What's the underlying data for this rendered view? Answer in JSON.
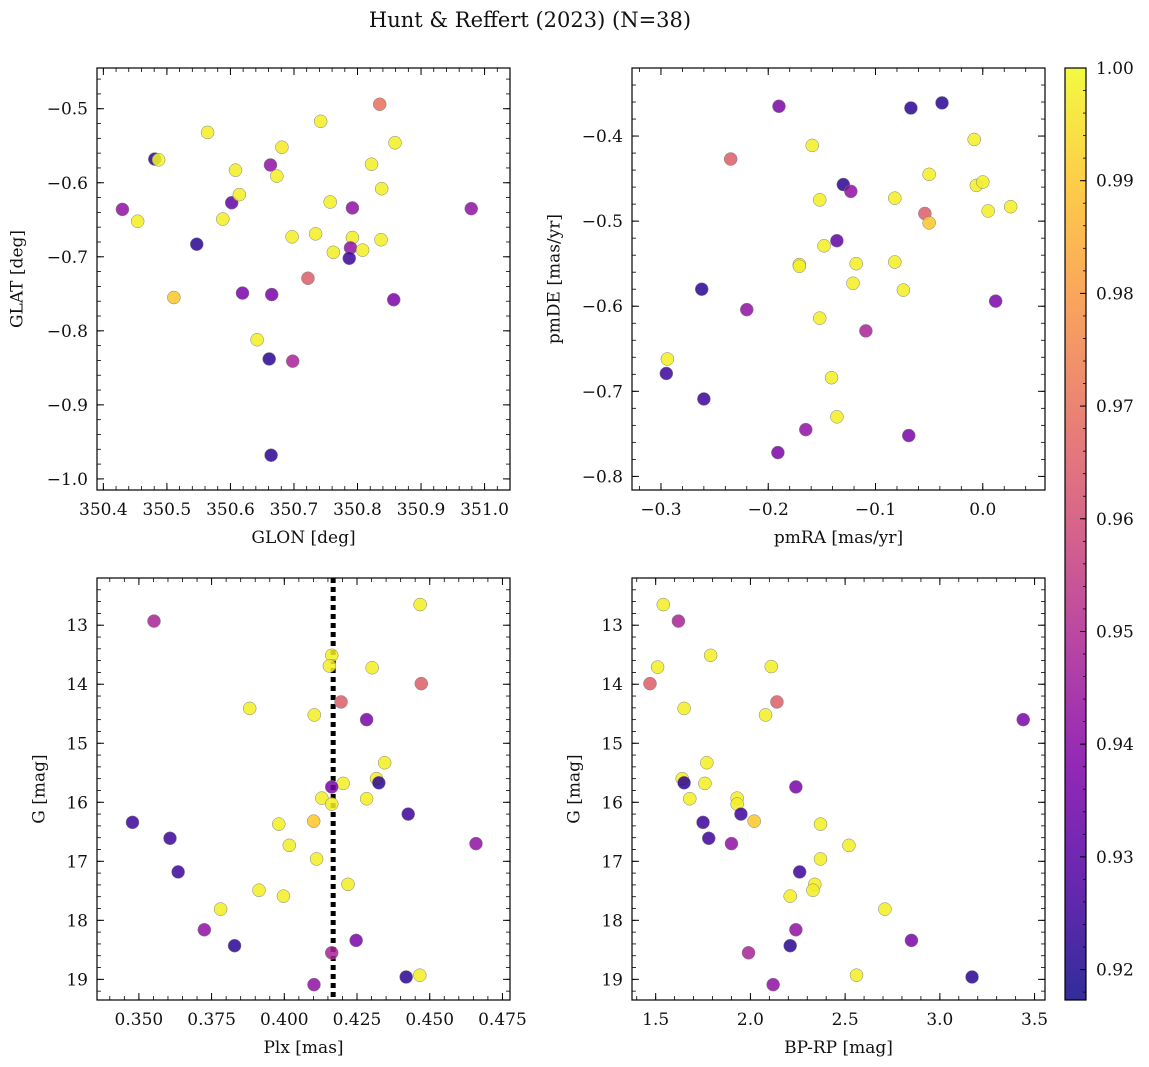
{
  "suptitle": "Hunt & Reffert (2023) (N=38)",
  "colorbar": {
    "colormap": "plasma",
    "range": [
      0.9173,
      1.0
    ],
    "ticks": [
      "0.92",
      "0.93",
      "0.94",
      "0.95",
      "0.96",
      "0.97",
      "0.98",
      "0.99",
      "1.00"
    ]
  },
  "marker": {
    "edge_color": "#808080",
    "alpha": 0.85
  },
  "chart_data": [
    {
      "id": "glon_glat",
      "type": "scatter",
      "xlabel": "GLON [deg]",
      "ylabel": "GLAT [deg]",
      "xlim": [
        350.39,
        351.04
      ],
      "ylim": [
        -1.015,
        -0.445
      ],
      "y_inverted": false,
      "xticks": [
        "350.4",
        "350.5",
        "350.6",
        "350.7",
        "350.8",
        "350.9",
        "351.0"
      ],
      "yticks": [
        "−0.5",
        "−0.6",
        "−0.7",
        "−0.8",
        "−0.9",
        "−1.0"
      ],
      "points": [
        [
          350.481,
          -0.568,
          0.922
        ],
        [
          350.487,
          -0.569,
          1.0
        ],
        [
          350.564,
          -0.532,
          0.998
        ],
        [
          350.742,
          -0.517,
          0.998
        ],
        [
          350.835,
          -0.494,
          0.97
        ],
        [
          350.681,
          -0.552,
          0.997
        ],
        [
          350.859,
          -0.546,
          0.998
        ],
        [
          350.608,
          -0.583,
          0.998
        ],
        [
          350.663,
          -0.576,
          0.942
        ],
        [
          350.673,
          -0.591,
          0.998
        ],
        [
          350.822,
          -0.575,
          0.998
        ],
        [
          350.43,
          -0.636,
          0.942
        ],
        [
          350.454,
          -0.652,
          0.998
        ],
        [
          350.602,
          -0.627,
          0.932
        ],
        [
          350.614,
          -0.616,
          0.998
        ],
        [
          350.588,
          -0.649,
          0.998
        ],
        [
          350.757,
          -0.626,
          0.998
        ],
        [
          350.792,
          -0.634,
          0.942
        ],
        [
          350.838,
          -0.608,
          0.998
        ],
        [
          350.979,
          -0.635,
          0.942
        ],
        [
          350.547,
          -0.683,
          0.922
        ],
        [
          350.697,
          -0.673,
          0.998
        ],
        [
          350.734,
          -0.669,
          0.998
        ],
        [
          350.792,
          -0.674,
          0.998
        ],
        [
          350.789,
          -0.688,
          0.942
        ],
        [
          350.837,
          -0.677,
          0.998
        ],
        [
          350.808,
          -0.691,
          0.998
        ],
        [
          350.762,
          -0.694,
          0.998
        ],
        [
          350.787,
          -0.702,
          0.925
        ],
        [
          350.511,
          -0.755,
          0.99
        ],
        [
          350.619,
          -0.749,
          0.937
        ],
        [
          350.665,
          -0.751,
          0.937
        ],
        [
          350.722,
          -0.729,
          0.965
        ],
        [
          350.857,
          -0.758,
          0.937
        ],
        [
          350.642,
          -0.812,
          0.998
        ],
        [
          350.661,
          -0.838,
          0.922
        ],
        [
          350.698,
          -0.841,
          0.948
        ],
        [
          350.664,
          -0.968,
          0.922
        ]
      ]
    },
    {
      "id": "pmra_pmde",
      "type": "scatter",
      "xlabel": "pmRA [mas/yr]",
      "ylabel": "pmDE [mas/yr]",
      "xlim": [
        -0.327,
        0.058
      ],
      "ylim": [
        -0.816,
        -0.32
      ],
      "y_inverted": false,
      "xticks": [
        "−0.3",
        "−0.2",
        "−0.1",
        "0.0"
      ],
      "yticks": [
        "−0.4",
        "−0.5",
        "−0.6",
        "−0.7",
        "−0.8"
      ],
      "points": [
        [
          -0.19,
          -0.365,
          0.937
        ],
        [
          -0.067,
          -0.367,
          0.922
        ],
        [
          -0.038,
          -0.361,
          0.922
        ],
        [
          -0.159,
          -0.411,
          0.998
        ],
        [
          -0.008,
          -0.404,
          0.998
        ],
        [
          -0.235,
          -0.427,
          0.965
        ],
        [
          -0.05,
          -0.445,
          0.998
        ],
        [
          -0.006,
          -0.458,
          0.998
        ],
        [
          0.0,
          -0.454,
          0.998
        ],
        [
          -0.13,
          -0.457,
          0.922
        ],
        [
          -0.123,
          -0.465,
          0.942
        ],
        [
          -0.152,
          -0.475,
          0.998
        ],
        [
          -0.082,
          -0.473,
          0.998
        ],
        [
          0.026,
          -0.483,
          0.998
        ],
        [
          0.005,
          -0.488,
          0.998
        ],
        [
          -0.054,
          -0.491,
          0.965
        ],
        [
          -0.05,
          -0.502,
          0.99
        ],
        [
          -0.136,
          -0.523,
          0.932
        ],
        [
          -0.148,
          -0.529,
          0.998
        ],
        [
          -0.171,
          -0.551,
          0.998
        ],
        [
          -0.171,
          -0.553,
          0.998
        ],
        [
          -0.118,
          -0.55,
          0.998
        ],
        [
          -0.082,
          -0.548,
          0.998
        ],
        [
          -0.121,
          -0.573,
          0.998
        ],
        [
          -0.262,
          -0.58,
          0.922
        ],
        [
          -0.074,
          -0.581,
          0.998
        ],
        [
          0.012,
          -0.594,
          0.937
        ],
        [
          -0.22,
          -0.604,
          0.942
        ],
        [
          -0.152,
          -0.614,
          0.998
        ],
        [
          -0.109,
          -0.629,
          0.948
        ],
        [
          -0.294,
          -0.662,
          0.998
        ],
        [
          -0.295,
          -0.679,
          0.925
        ],
        [
          -0.141,
          -0.684,
          0.998
        ],
        [
          -0.26,
          -0.709,
          0.925
        ],
        [
          -0.136,
          -0.73,
          0.998
        ],
        [
          -0.165,
          -0.745,
          0.942
        ],
        [
          -0.069,
          -0.752,
          0.937
        ],
        [
          -0.191,
          -0.772,
          0.937
        ]
      ]
    },
    {
      "id": "plx_g",
      "type": "scatter",
      "xlabel": "Plx [mas]",
      "ylabel": "G [mag]",
      "xlim": [
        0.3356,
        0.4776
      ],
      "ylim": [
        12.2,
        19.35
      ],
      "y_inverted": true,
      "xticks": [
        "0.350",
        "0.375",
        "0.400",
        "0.425",
        "0.450",
        "0.475"
      ],
      "yticks": [
        "13",
        "14",
        "15",
        "16",
        "17",
        "18",
        "19"
      ],
      "vline": {
        "x": 0.4168,
        "style": "dotted",
        "color": "#000000"
      },
      "points": [
        [
          0.4467,
          12.65,
          0.998
        ],
        [
          0.3552,
          12.93,
          0.948
        ],
        [
          0.4163,
          13.51,
          0.998
        ],
        [
          0.4155,
          13.69,
          0.998
        ],
        [
          0.4302,
          13.72,
          0.998
        ],
        [
          0.4471,
          13.99,
          0.965
        ],
        [
          0.4195,
          14.3,
          0.965
        ],
        [
          0.3881,
          14.41,
          0.998
        ],
        [
          0.4103,
          14.52,
          0.998
        ],
        [
          0.4283,
          14.6,
          0.937
        ],
        [
          0.4345,
          15.33,
          0.998
        ],
        [
          0.4317,
          15.6,
          0.998
        ],
        [
          0.4325,
          15.67,
          0.922
        ],
        [
          0.4202,
          15.68,
          0.998
        ],
        [
          0.4163,
          15.74,
          0.937
        ],
        [
          0.4129,
          15.93,
          0.998
        ],
        [
          0.4283,
          15.94,
          0.998
        ],
        [
          0.4163,
          16.03,
          0.998
        ],
        [
          0.4426,
          16.2,
          0.925
        ],
        [
          0.4101,
          16.32,
          0.99
        ],
        [
          0.3478,
          16.34,
          0.925
        ],
        [
          0.3981,
          16.37,
          0.998
        ],
        [
          0.3607,
          16.61,
          0.925
        ],
        [
          0.4659,
          16.7,
          0.942
        ],
        [
          0.4017,
          16.73,
          0.998
        ],
        [
          0.4111,
          16.96,
          0.998
        ],
        [
          0.3635,
          17.18,
          0.925
        ],
        [
          0.4219,
          17.39,
          0.998
        ],
        [
          0.3913,
          17.49,
          0.998
        ],
        [
          0.3997,
          17.59,
          0.998
        ],
        [
          0.3781,
          17.81,
          0.998
        ],
        [
          0.3725,
          18.16,
          0.942
        ],
        [
          0.4247,
          18.34,
          0.937
        ],
        [
          0.3829,
          18.43,
          0.922
        ],
        [
          0.4163,
          18.55,
          0.948
        ],
        [
          0.4466,
          18.93,
          0.998
        ],
        [
          0.4419,
          18.96,
          0.922
        ],
        [
          0.4102,
          19.09,
          0.942
        ]
      ]
    },
    {
      "id": "bprp_g",
      "type": "scatter",
      "xlabel": "BP-RP [mag]",
      "ylabel": "G [mag]",
      "xlim": [
        1.375,
        3.555
      ],
      "ylim": [
        12.2,
        19.35
      ],
      "y_inverted": true,
      "xticks": [
        "1.5",
        "2.0",
        "2.5",
        "3.0",
        "3.5"
      ],
      "yticks": [
        "13",
        "14",
        "15",
        "16",
        "17",
        "18",
        "19"
      ],
      "points": [
        [
          1.54,
          12.65,
          0.998
        ],
        [
          1.62,
          12.93,
          0.948
        ],
        [
          1.79,
          13.51,
          0.998
        ],
        [
          1.51,
          13.71,
          0.998
        ],
        [
          2.11,
          13.7,
          0.998
        ],
        [
          1.47,
          13.99,
          0.965
        ],
        [
          2.14,
          14.3,
          0.965
        ],
        [
          1.65,
          14.41,
          0.998
        ],
        [
          2.08,
          14.52,
          0.998
        ],
        [
          3.44,
          14.6,
          0.937
        ],
        [
          1.77,
          15.33,
          0.998
        ],
        [
          1.64,
          15.6,
          0.998
        ],
        [
          1.65,
          15.67,
          0.922
        ],
        [
          1.76,
          15.68,
          0.998
        ],
        [
          2.24,
          15.74,
          0.937
        ],
        [
          1.93,
          15.93,
          0.998
        ],
        [
          1.68,
          15.94,
          0.998
        ],
        [
          1.93,
          16.03,
          0.998
        ],
        [
          1.95,
          16.2,
          0.925
        ],
        [
          2.02,
          16.32,
          0.99
        ],
        [
          1.75,
          16.34,
          0.925
        ],
        [
          2.37,
          16.37,
          0.998
        ],
        [
          1.78,
          16.61,
          0.925
        ],
        [
          1.9,
          16.7,
          0.942
        ],
        [
          2.52,
          16.73,
          0.998
        ],
        [
          2.37,
          16.96,
          0.998
        ],
        [
          2.26,
          17.18,
          0.925
        ],
        [
          2.34,
          17.39,
          0.998
        ],
        [
          2.33,
          17.49,
          0.998
        ],
        [
          2.21,
          17.59,
          0.998
        ],
        [
          2.71,
          17.81,
          0.998
        ],
        [
          2.24,
          18.16,
          0.942
        ],
        [
          2.85,
          18.34,
          0.937
        ],
        [
          2.21,
          18.43,
          0.922
        ],
        [
          1.99,
          18.55,
          0.948
        ],
        [
          2.56,
          18.93,
          0.998
        ],
        [
          3.17,
          18.96,
          0.922
        ],
        [
          2.12,
          19.09,
          0.942
        ]
      ]
    }
  ]
}
